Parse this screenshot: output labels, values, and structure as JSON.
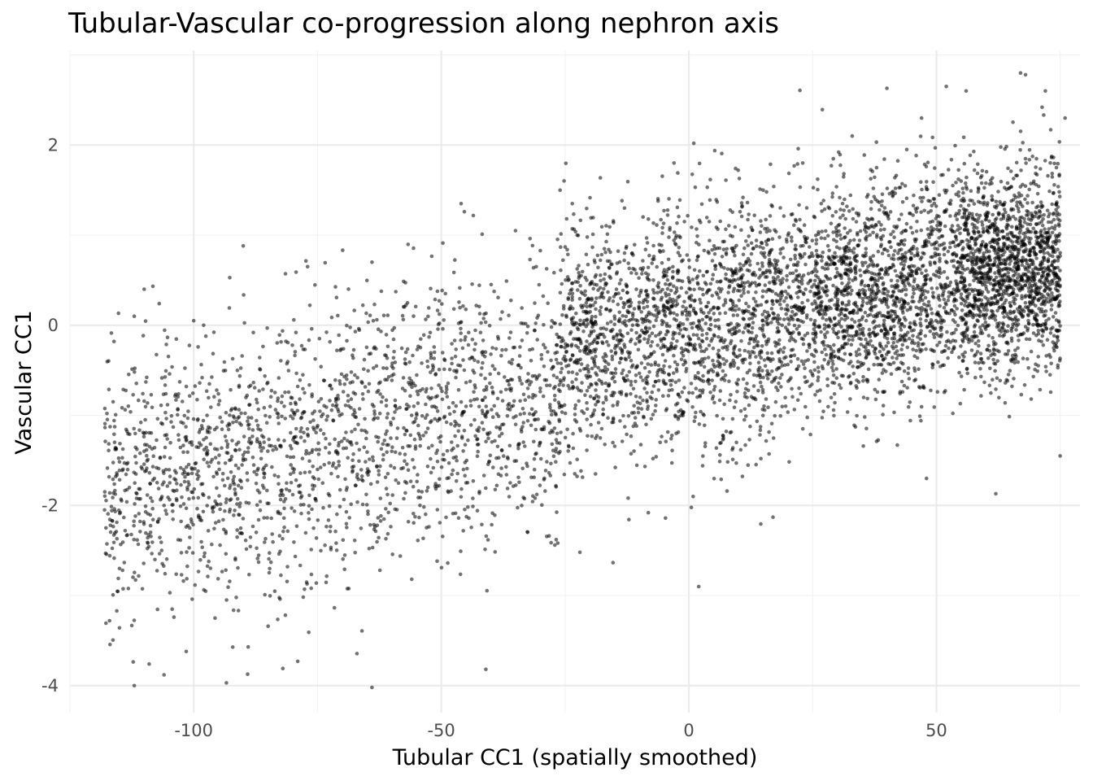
{
  "chart_data": {
    "type": "scatter",
    "title": "Tubular-Vascular co-progression along nephron axis",
    "xlabel": "Tubular CC1 (spatially smoothed)",
    "ylabel": "Vascular CC1",
    "xlim": [
      -125,
      79
    ],
    "ylim": [
      -4.3,
      3.05
    ],
    "xticks": [
      -100,
      -50,
      0,
      50
    ],
    "yticks": [
      -4,
      -2,
      0,
      2
    ],
    "xtick_labels": [
      "-100",
      "-50",
      "0",
      "50"
    ],
    "ytick_labels": [
      "-4",
      "-2",
      "0",
      "2"
    ],
    "grid": true,
    "point_color": "#000000",
    "point_alpha": 0.55,
    "n_points_approx": 7000,
    "points_sample": [
      [
        -118,
        -2.05
      ],
      [
        -117,
        -3.28
      ],
      [
        -115,
        -2.7
      ],
      [
        -112,
        0.1
      ],
      [
        -112,
        -4.0
      ],
      [
        -110,
        0.4
      ],
      [
        -109,
        -3.76
      ],
      [
        -106,
        -3.88
      ],
      [
        -104,
        -3.24
      ],
      [
        -100,
        0.05
      ],
      [
        -98,
        0.0
      ],
      [
        -90,
        0.88
      ],
      [
        -89,
        -3.57
      ],
      [
        -82,
        -3.81
      ],
      [
        -79,
        -3.73
      ],
      [
        -77,
        0.65
      ],
      [
        -64,
        0.7
      ],
      [
        -64,
        -4.02
      ],
      [
        -46,
        1.35
      ],
      [
        -41,
        -3.82
      ],
      [
        -35,
        1.05
      ],
      [
        -26,
        1.5
      ],
      [
        -22,
        -2.52
      ],
      [
        -13,
        1.3
      ],
      [
        -3,
        1.8
      ],
      [
        1,
        2.02
      ],
      [
        2,
        -2.9
      ],
      [
        15,
        1.5
      ],
      [
        17,
        -2.13
      ],
      [
        23,
        1.8
      ],
      [
        33,
        2.1
      ],
      [
        40,
        2.63
      ],
      [
        47,
        2.3
      ],
      [
        48,
        -1.7
      ],
      [
        52,
        2.65
      ],
      [
        56,
        2.6
      ],
      [
        62,
        -1.87
      ],
      [
        67,
        2.8
      ],
      [
        68,
        2.78
      ],
      [
        72,
        2.6
      ],
      [
        75,
        -1.45
      ],
      [
        76,
        2.3
      ],
      [
        -110,
        -1.2
      ],
      [
        -90,
        -1.5
      ],
      [
        -75,
        -1.6
      ],
      [
        -60,
        -1.4
      ],
      [
        -45,
        -0.9
      ],
      [
        -30,
        -0.7
      ],
      [
        -15,
        0.1
      ],
      [
        0,
        -0.2
      ],
      [
        15,
        0.0
      ],
      [
        30,
        0.35
      ],
      [
        45,
        0.6
      ],
      [
        55,
        0.7
      ],
      [
        65,
        0.75
      ],
      [
        72,
        0.5
      ]
    ],
    "distribution": {
      "segments": [
        {
          "x_range": [
            -118,
            -26
          ],
          "count": 2000,
          "y_trend": [
            -1.8,
            -0.7
          ],
          "y_spread": 0.75
        },
        {
          "x_range": [
            -26,
            25
          ],
          "count": 2000,
          "y_trend": [
            -0.2,
            0.2
          ],
          "y_spread": 0.65
        },
        {
          "x_range": [
            25,
            55
          ],
          "count": 1500,
          "y_trend": [
            0.2,
            0.6
          ],
          "y_spread": 0.6
        },
        {
          "x_range": [
            55,
            75
          ],
          "count": 1500,
          "y_trend": [
            0.6,
            0.6
          ],
          "y_spread": 0.55
        }
      ]
    }
  }
}
